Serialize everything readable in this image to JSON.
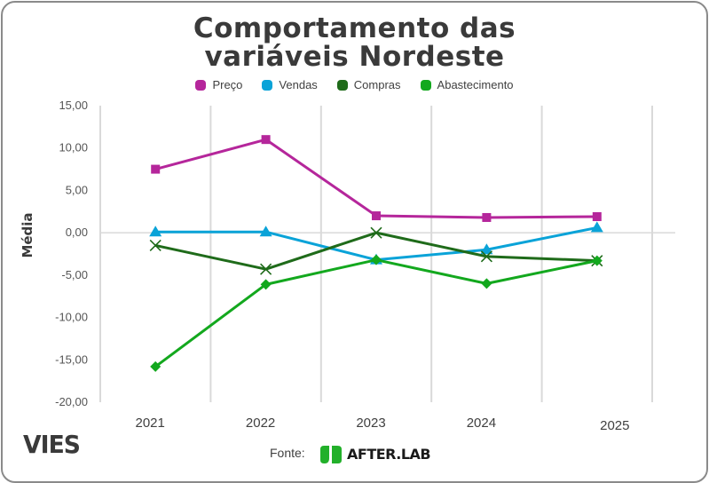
{
  "chart_data": {
    "type": "line",
    "title": "Comportamento das variáveis Nordeste",
    "title_lines": [
      "Comportamento das",
      "variáveis Nordeste"
    ],
    "xlabel": "",
    "ylabel": "Média",
    "categories": [
      "2021",
      "2022",
      "2023",
      "2024",
      "2025"
    ],
    "ylim": [
      -20,
      15
    ],
    "yticks": [
      15,
      10,
      5,
      0,
      -5,
      -10,
      -15,
      -20
    ],
    "ytick_labels": [
      "15,00",
      "10,00",
      "5,00",
      "0,00",
      "-5,00",
      "-10,00",
      "-15,00",
      "-20,00"
    ],
    "grid": "vertical",
    "legend_position": "top",
    "series": [
      {
        "name": "Preço",
        "color": "#b5269b",
        "marker": "square",
        "values": [
          7.5,
          11.0,
          2.0,
          1.8,
          1.9
        ]
      },
      {
        "name": "Vendas",
        "color": "#0aa3d8",
        "marker": "triangle",
        "values": [
          0.1,
          0.1,
          -3.2,
          -2.0,
          0.6
        ]
      },
      {
        "name": "Compras",
        "color": "#1f6b1a",
        "marker": "x",
        "values": [
          -1.5,
          -4.3,
          0.0,
          -2.8,
          -3.3
        ]
      },
      {
        "name": "Abastecimento",
        "color": "#13a81e",
        "marker": "diamond",
        "values": [
          -15.8,
          -6.1,
          -3.2,
          -6.0,
          -3.3
        ]
      }
    ]
  },
  "footer": {
    "brand": "VIES",
    "source_label": "Fonte:",
    "source_name": "AFTER.LAB",
    "source_logo_color": "#22b02a"
  }
}
